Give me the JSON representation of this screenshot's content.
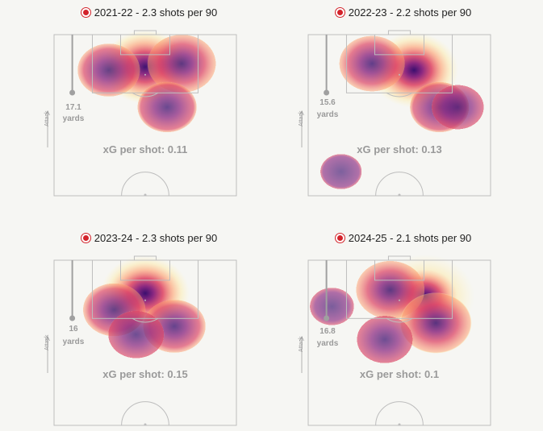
{
  "chart_data": [
    {
      "type": "heatmap",
      "title": "2021-22 - 2.3 shots per 90",
      "xg_label": "xG per shot: 0.11",
      "distance_value": "17.1",
      "distance_unit": "yards",
      "attack_label": "Attack",
      "hotspots": [
        {
          "x": 0.5,
          "y": 0.2,
          "intensity": 0.95
        },
        {
          "x": 0.7,
          "y": 0.18,
          "intensity": 0.6
        },
        {
          "x": 0.3,
          "y": 0.22,
          "intensity": 0.5
        },
        {
          "x": 0.62,
          "y": 0.45,
          "intensity": 0.45
        }
      ]
    },
    {
      "type": "heatmap",
      "title": "2022-23 - 2.2 shots per 90",
      "xg_label": "xG per shot: 0.13",
      "distance_value": "15.6",
      "distance_unit": "yards",
      "attack_label": "Attack",
      "hotspots": [
        {
          "x": 0.58,
          "y": 0.22,
          "intensity": 1.0
        },
        {
          "x": 0.35,
          "y": 0.18,
          "intensity": 0.55
        },
        {
          "x": 0.72,
          "y": 0.45,
          "intensity": 0.45
        },
        {
          "x": 0.82,
          "y": 0.45,
          "intensity": 0.35
        },
        {
          "x": 0.18,
          "y": 0.85,
          "intensity": 0.22
        }
      ]
    },
    {
      "type": "heatmap",
      "title": "2023-24 - 2.3 shots per 90",
      "xg_label": "xG per shot: 0.15",
      "distance_value": "16",
      "distance_unit": "yards",
      "attack_label": "Attack",
      "hotspots": [
        {
          "x": 0.5,
          "y": 0.2,
          "intensity": 1.0
        },
        {
          "x": 0.33,
          "y": 0.3,
          "intensity": 0.5
        },
        {
          "x": 0.66,
          "y": 0.4,
          "intensity": 0.5
        },
        {
          "x": 0.45,
          "y": 0.45,
          "intensity": 0.4
        }
      ]
    },
    {
      "type": "heatmap",
      "title": "2024-25 - 2.1 shots per 90",
      "xg_label": "xG per shot: 0.1",
      "distance_value": "16.8",
      "distance_unit": "yards",
      "attack_label": "Attack",
      "hotspots": [
        {
          "x": 0.64,
          "y": 0.22,
          "intensity": 1.25
        },
        {
          "x": 0.45,
          "y": 0.18,
          "intensity": 0.6
        },
        {
          "x": 0.7,
          "y": 0.38,
          "intensity": 0.65
        },
        {
          "x": 0.42,
          "y": 0.48,
          "intensity": 0.4
        },
        {
          "x": 0.13,
          "y": 0.28,
          "intensity": 0.25
        }
      ]
    }
  ]
}
